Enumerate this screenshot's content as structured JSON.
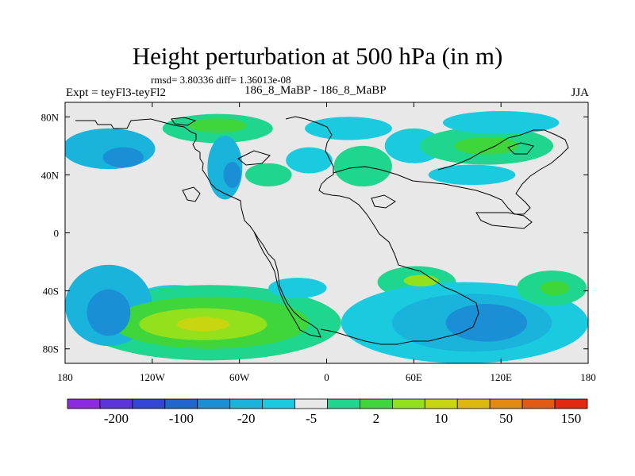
{
  "title": "Height perturbation at 500 hPa (in m)",
  "stats": "rmsd= 3.80336 diff= 1.36013e-08",
  "experiment": "Expt = teyFl3-teyFl2",
  "case": "186_8_MaBP - 186_8_MaBP",
  "season": "JJA",
  "chart_data": {
    "type": "heatmap",
    "title": "Height perturbation at 500 hPa (in m)",
    "xlabel": "",
    "ylabel": "",
    "xlim": [
      -180,
      180
    ],
    "ylim": [
      -90,
      90
    ],
    "x_ticks": [
      {
        "value": -180,
        "label": "180"
      },
      {
        "value": -120,
        "label": "120W"
      },
      {
        "value": -60,
        "label": "60W"
      },
      {
        "value": 0,
        "label": "0"
      },
      {
        "value": 60,
        "label": "60E"
      },
      {
        "value": 120,
        "label": "120E"
      },
      {
        "value": 180,
        "label": "180"
      }
    ],
    "y_ticks": [
      {
        "value": 80,
        "label": "80N"
      },
      {
        "value": 40,
        "label": "40N"
      },
      {
        "value": 0,
        "label": "0"
      },
      {
        "value": -40,
        "label": "40S"
      },
      {
        "value": -80,
        "label": "80S"
      }
    ],
    "colorbar": {
      "colors": [
        "#8a2be2",
        "#5b35dc",
        "#3445d6",
        "#2166cf",
        "#1b8fd6",
        "#19b3dc",
        "#1acbe0",
        "#e8e8e8",
        "#1fd68f",
        "#3ed63a",
        "#93e01c",
        "#c8d610",
        "#dcb70c",
        "#e48a10",
        "#e35b12",
        "#e22712"
      ],
      "labels": [
        "-200",
        "-100",
        "-20",
        "-5",
        "2",
        "10",
        "50",
        "150"
      ]
    },
    "fields": [
      {
        "lon": -150,
        "lat": 58,
        "rx": 32,
        "ry": 14,
        "level": -2
      },
      {
        "lon": -140,
        "lat": 52,
        "rx": 14,
        "ry": 7,
        "level": -3
      },
      {
        "lon": -75,
        "lat": 72,
        "rx": 38,
        "ry": 10,
        "level": 1
      },
      {
        "lon": -75,
        "lat": 74,
        "rx": 20,
        "ry": 5,
        "level": 2
      },
      {
        "lon": -70,
        "lat": 45,
        "rx": 12,
        "ry": 22,
        "level": -2
      },
      {
        "lon": -65,
        "lat": 40,
        "rx": 6,
        "ry": 9,
        "level": -3
      },
      {
        "lon": -40,
        "lat": 40,
        "rx": 16,
        "ry": 8,
        "level": 1
      },
      {
        "lon": -12,
        "lat": 50,
        "rx": 16,
        "ry": 9,
        "level": -1
      },
      {
        "lon": 25,
        "lat": 46,
        "rx": 20,
        "ry": 14,
        "level": 1
      },
      {
        "lon": 15,
        "lat": 72,
        "rx": 30,
        "ry": 8,
        "level": -1
      },
      {
        "lon": 60,
        "lat": 60,
        "rx": 20,
        "ry": 12,
        "level": -1
      },
      {
        "lon": 110,
        "lat": 60,
        "rx": 46,
        "ry": 13,
        "level": 1
      },
      {
        "lon": 110,
        "lat": 60,
        "rx": 22,
        "ry": 6,
        "level": 2
      },
      {
        "lon": 120,
        "lat": 76,
        "rx": 40,
        "ry": 8,
        "level": -1
      },
      {
        "lon": 100,
        "lat": 40,
        "rx": 30,
        "ry": 7,
        "level": -1
      },
      {
        "lon": -150,
        "lat": -50,
        "rx": 30,
        "ry": 28,
        "level": -2
      },
      {
        "lon": -150,
        "lat": -55,
        "rx": 15,
        "ry": 16,
        "level": -3
      },
      {
        "lon": -105,
        "lat": -45,
        "rx": 26,
        "ry": 9,
        "level": -1
      },
      {
        "lon": -80,
        "lat": -62,
        "rx": 90,
        "ry": 26,
        "level": 1
      },
      {
        "lon": -80,
        "lat": -62,
        "rx": 68,
        "ry": 18,
        "level": 2
      },
      {
        "lon": -85,
        "lat": -63,
        "rx": 44,
        "ry": 11,
        "level": 3
      },
      {
        "lon": -85,
        "lat": -63,
        "rx": 18,
        "ry": 5,
        "level": 4
      },
      {
        "lon": -20,
        "lat": -38,
        "rx": 20,
        "ry": 7,
        "level": -1
      },
      {
        "lon": 62,
        "lat": -34,
        "rx": 27,
        "ry": 11,
        "level": 1
      },
      {
        "lon": 65,
        "lat": -33,
        "rx": 12,
        "ry": 4,
        "level": 3
      },
      {
        "lon": 95,
        "lat": -62,
        "rx": 85,
        "ry": 28,
        "level": -1
      },
      {
        "lon": 100,
        "lat": -62,
        "rx": 55,
        "ry": 20,
        "level": -2
      },
      {
        "lon": 110,
        "lat": -62,
        "rx": 28,
        "ry": 13,
        "level": -3
      },
      {
        "lon": 155,
        "lat": -38,
        "rx": 24,
        "ry": 12,
        "level": 1
      },
      {
        "lon": 157,
        "lat": -38,
        "rx": 10,
        "ry": 5,
        "level": 2
      }
    ]
  }
}
